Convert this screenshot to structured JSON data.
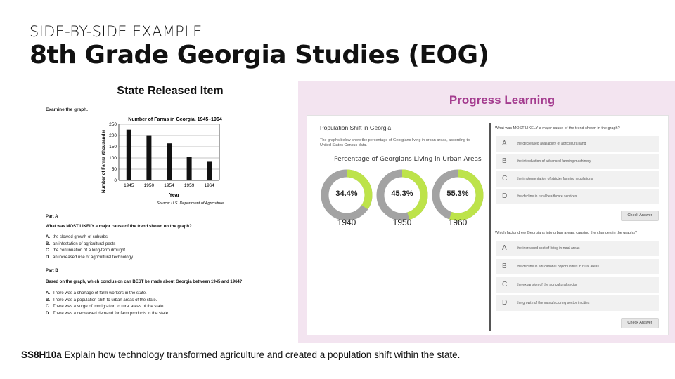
{
  "slide": {
    "eyebrow": "SIDE-BY-SIDE EXAMPLE",
    "title": "8th Grade Georgia Studies (EOG)"
  },
  "state_item": {
    "heading": "State Released Item",
    "instruction": "Examine the graph.",
    "part_a": {
      "label": "Part A",
      "question": "What was MOST LIKELY a major cause of the trend shown on the graph?",
      "options": [
        {
          "letter": "A.",
          "text": "the slowed growth of suburbs"
        },
        {
          "letter": "B.",
          "text": "an infestation of agricultural pests"
        },
        {
          "letter": "C.",
          "text": "the continuation of a long-term drought"
        },
        {
          "letter": "D.",
          "text": "an increased use of agricultural technology"
        }
      ]
    },
    "part_b": {
      "label": "Part B",
      "question": "Based on the graph, which conclusion can BEST be made about Georgia between 1945 and 1964?",
      "options": [
        {
          "letter": "A.",
          "text": "There was a shortage of farm workers in the state."
        },
        {
          "letter": "B.",
          "text": "There was a population shift to urban areas of the state."
        },
        {
          "letter": "C.",
          "text": "There was a surge of immigration to rural areas of the state."
        },
        {
          "letter": "D.",
          "text": "There was a decreased demand for farm products in the state."
        }
      ]
    }
  },
  "chart_data": [
    {
      "type": "bar",
      "title": "Number of Farms in Georgia, 1945–1964",
      "xlabel": "Year",
      "ylabel": "Number of Farms (thousands)",
      "categories": [
        "1945",
        "1950",
        "1954",
        "1959",
        "1964"
      ],
      "values": [
        226,
        198,
        165,
        106,
        83
      ],
      "ylim": [
        0,
        250
      ],
      "yticks": [
        "0",
        "50",
        "100",
        "150",
        "200",
        "250"
      ],
      "source": "Source: U.S. Department of Agriculture",
      "grid": true
    },
    {
      "type": "pie",
      "title": "Percentage of Georgians Living in Urban Areas",
      "categories": [
        "1940",
        "1950",
        "1960"
      ],
      "values": [
        34.4,
        45.3,
        55.3
      ],
      "value_labels": [
        "34.4%",
        "45.3%",
        "55.3%"
      ]
    }
  ],
  "progress_learning": {
    "heading": "Progress Learning",
    "passage_title": "Population Shift in Georgia",
    "passage_desc": "The graphs below show the percentage of Georgians living in urban areas, according to United States Census data.",
    "colors": {
      "urban": "#bde34a",
      "rural": "#a3a3a3",
      "brand": "#a43c8f"
    },
    "q1": {
      "text": "What was MOST LIKELY a major cause of the trend shown in the graph?",
      "answers": [
        {
          "letter": "A",
          "text": "the decreased availability of agricultural land"
        },
        {
          "letter": "B",
          "text": "the introduction of advanced farming machinery"
        },
        {
          "letter": "C",
          "text": "the implementation of stricter farming regulations"
        },
        {
          "letter": "D",
          "text": "the decline in rural healthcare services"
        }
      ],
      "button": "Check Answer"
    },
    "q2": {
      "text": "Which factor drew Georgians into urban areas, causing the changes in the graphs?",
      "answers": [
        {
          "letter": "A",
          "text": "the increased cost of living in rural areas"
        },
        {
          "letter": "B",
          "text": "the decline in educational opportunities in rural areas"
        },
        {
          "letter": "C",
          "text": "the expansion of the agricultural sector"
        },
        {
          "letter": "D",
          "text": "the growth of the manufacturing sector in cities"
        }
      ],
      "button": "Check Answer"
    }
  },
  "footer": {
    "code": "SS8H10a",
    "text": " Explain how technology transformed agriculture and created a population shift within the state."
  }
}
